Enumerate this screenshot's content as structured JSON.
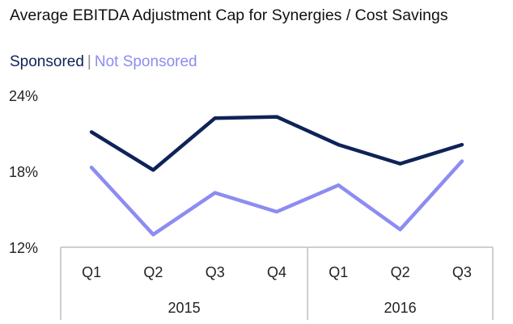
{
  "title": "Average EBITDA Adjustment Cap for Synergies / Cost Savings",
  "legend": {
    "sponsored": "Sponsored",
    "separator": "|",
    "not_sponsored": "Not Sponsored"
  },
  "colors": {
    "sponsored": "#0e2358",
    "not_sponsored": "#8c8cf2",
    "axis": "#bfbfbf"
  },
  "chart_data": {
    "type": "line",
    "title": "Average EBITDA Adjustment Cap for Synergies / Cost Savings",
    "categories": [
      "Q1",
      "Q2",
      "Q3",
      "Q4",
      "Q1",
      "Q2",
      "Q3"
    ],
    "groups": [
      {
        "label": "2015",
        "count": 4
      },
      {
        "label": "2016",
        "count": 3
      }
    ],
    "series": [
      {
        "name": "Sponsored",
        "values": [
          21.1,
          18.1,
          22.2,
          22.3,
          20.1,
          18.6,
          20.1
        ]
      },
      {
        "name": "Not Sponsored",
        "values": [
          18.3,
          13.0,
          16.3,
          14.8,
          16.9,
          13.4,
          18.8
        ]
      }
    ],
    "ylim": [
      12,
      24
    ],
    "yticks": [
      "24%",
      "18%",
      "12%"
    ],
    "ytick_values": [
      24,
      18,
      12
    ],
    "grid": false,
    "legend_position": "top-left"
  }
}
